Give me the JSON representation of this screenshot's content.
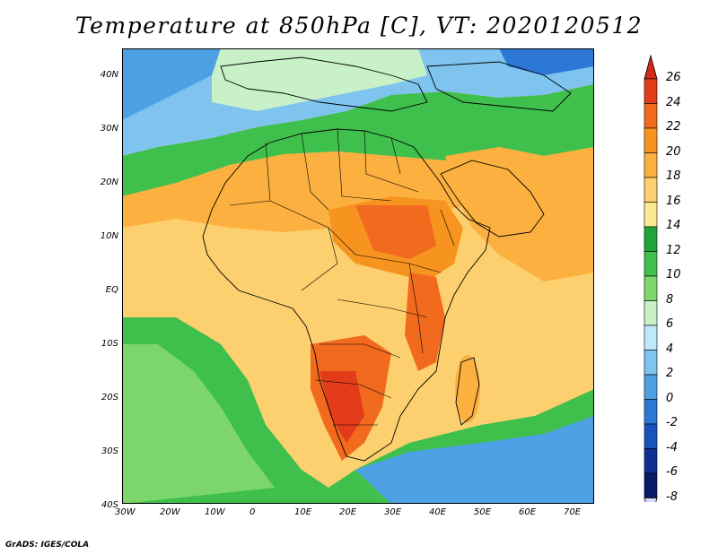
{
  "title": "Temperature at 850hPa [C], VT: 2020120512",
  "credit": "GrADS: IGES/COLA",
  "map": {
    "lon_range": [
      -30,
      75
    ],
    "lat_range": [
      -40,
      45
    ],
    "lon_ticks": [
      "30W",
      "20W",
      "10W",
      "0",
      "10E",
      "20E",
      "30E",
      "40E",
      "50E",
      "60E",
      "70E"
    ],
    "lat_ticks": [
      "40N",
      "30N",
      "20N",
      "10N",
      "EQ",
      "10S",
      "20S",
      "30S",
      "40S"
    ]
  },
  "colorbar": {
    "labels": [
      "26",
      "24",
      "22",
      "20",
      "18",
      "16",
      "14",
      "12",
      "10",
      "8",
      "6",
      "4",
      "2",
      "0",
      "-2",
      "-4",
      "-6",
      "-8"
    ],
    "colors": [
      "#e23c1a",
      "#f26a1e",
      "#f7931f",
      "#fbb040",
      "#fcd06e",
      "#fde98f",
      "#1fa33a",
      "#3fbf4c",
      "#7cd66c",
      "#c8f1c8",
      "#bfe8f8",
      "#7fc4ee",
      "#4ea0e4",
      "#2d78d6",
      "#1a52bd",
      "#0e2f94",
      "#0a1a66"
    ],
    "top_arrow": "#d42a18",
    "bottom_arrow": "#d8d8f8"
  }
}
